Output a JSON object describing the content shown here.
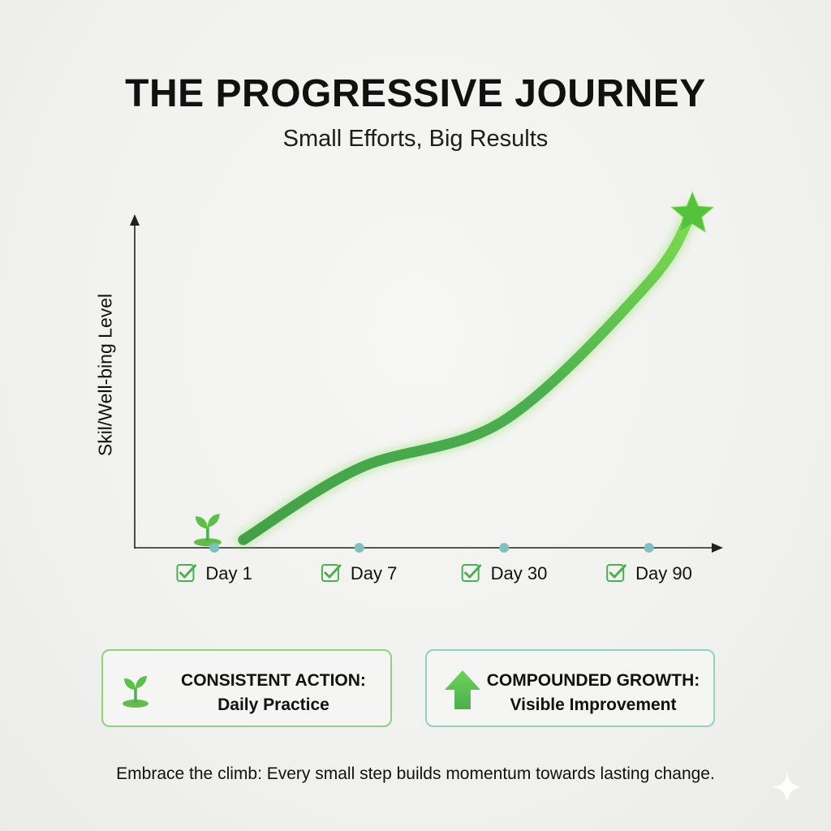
{
  "title": "THE PROGRESSIVE JOURNEY",
  "subtitle": "Small Efforts, Big Results",
  "chart_data": {
    "type": "line",
    "title": "THE PROGRESSIVE JOURNEY",
    "subtitle": "Small Efforts, Big Results",
    "xlabel": "",
    "ylabel": "Skil/Well-bing Level",
    "categories": [
      "Day 1",
      "Day 7",
      "Day 30",
      "Day 90"
    ],
    "x": [
      0.2,
      1,
      2,
      3,
      3.3
    ],
    "values": [
      3,
      30,
      48,
      100,
      127
    ],
    "xlim": [
      -0.55,
      3.45
    ],
    "ylim": [
      0,
      130
    ],
    "grid": false,
    "legend": "none",
    "series": [
      {
        "name": "Skill/Well-being",
        "color": "#4caf50"
      }
    ],
    "start_marker": "sprout-icon",
    "end_marker": "star-icon",
    "tick_icon": "checkbox-icon"
  },
  "cards": [
    {
      "title": "CONSISTENT ACTION:",
      "text": "Daily Practice",
      "icon": "sprout-icon",
      "color": "#8fd17f"
    },
    {
      "title": "COMPOUNDED GROWTH:",
      "text": "Visible Improvement",
      "icon": "up-arrow-icon",
      "color": "#93d1c4"
    }
  ],
  "footer": "Embrace the climb: Every small step builds momentum towards lasting change.",
  "colors": {
    "line": "#4caf50",
    "line_light": "#7ddb4f",
    "tick_dot": "#7fc1bf",
    "check": "#4caf50"
  }
}
